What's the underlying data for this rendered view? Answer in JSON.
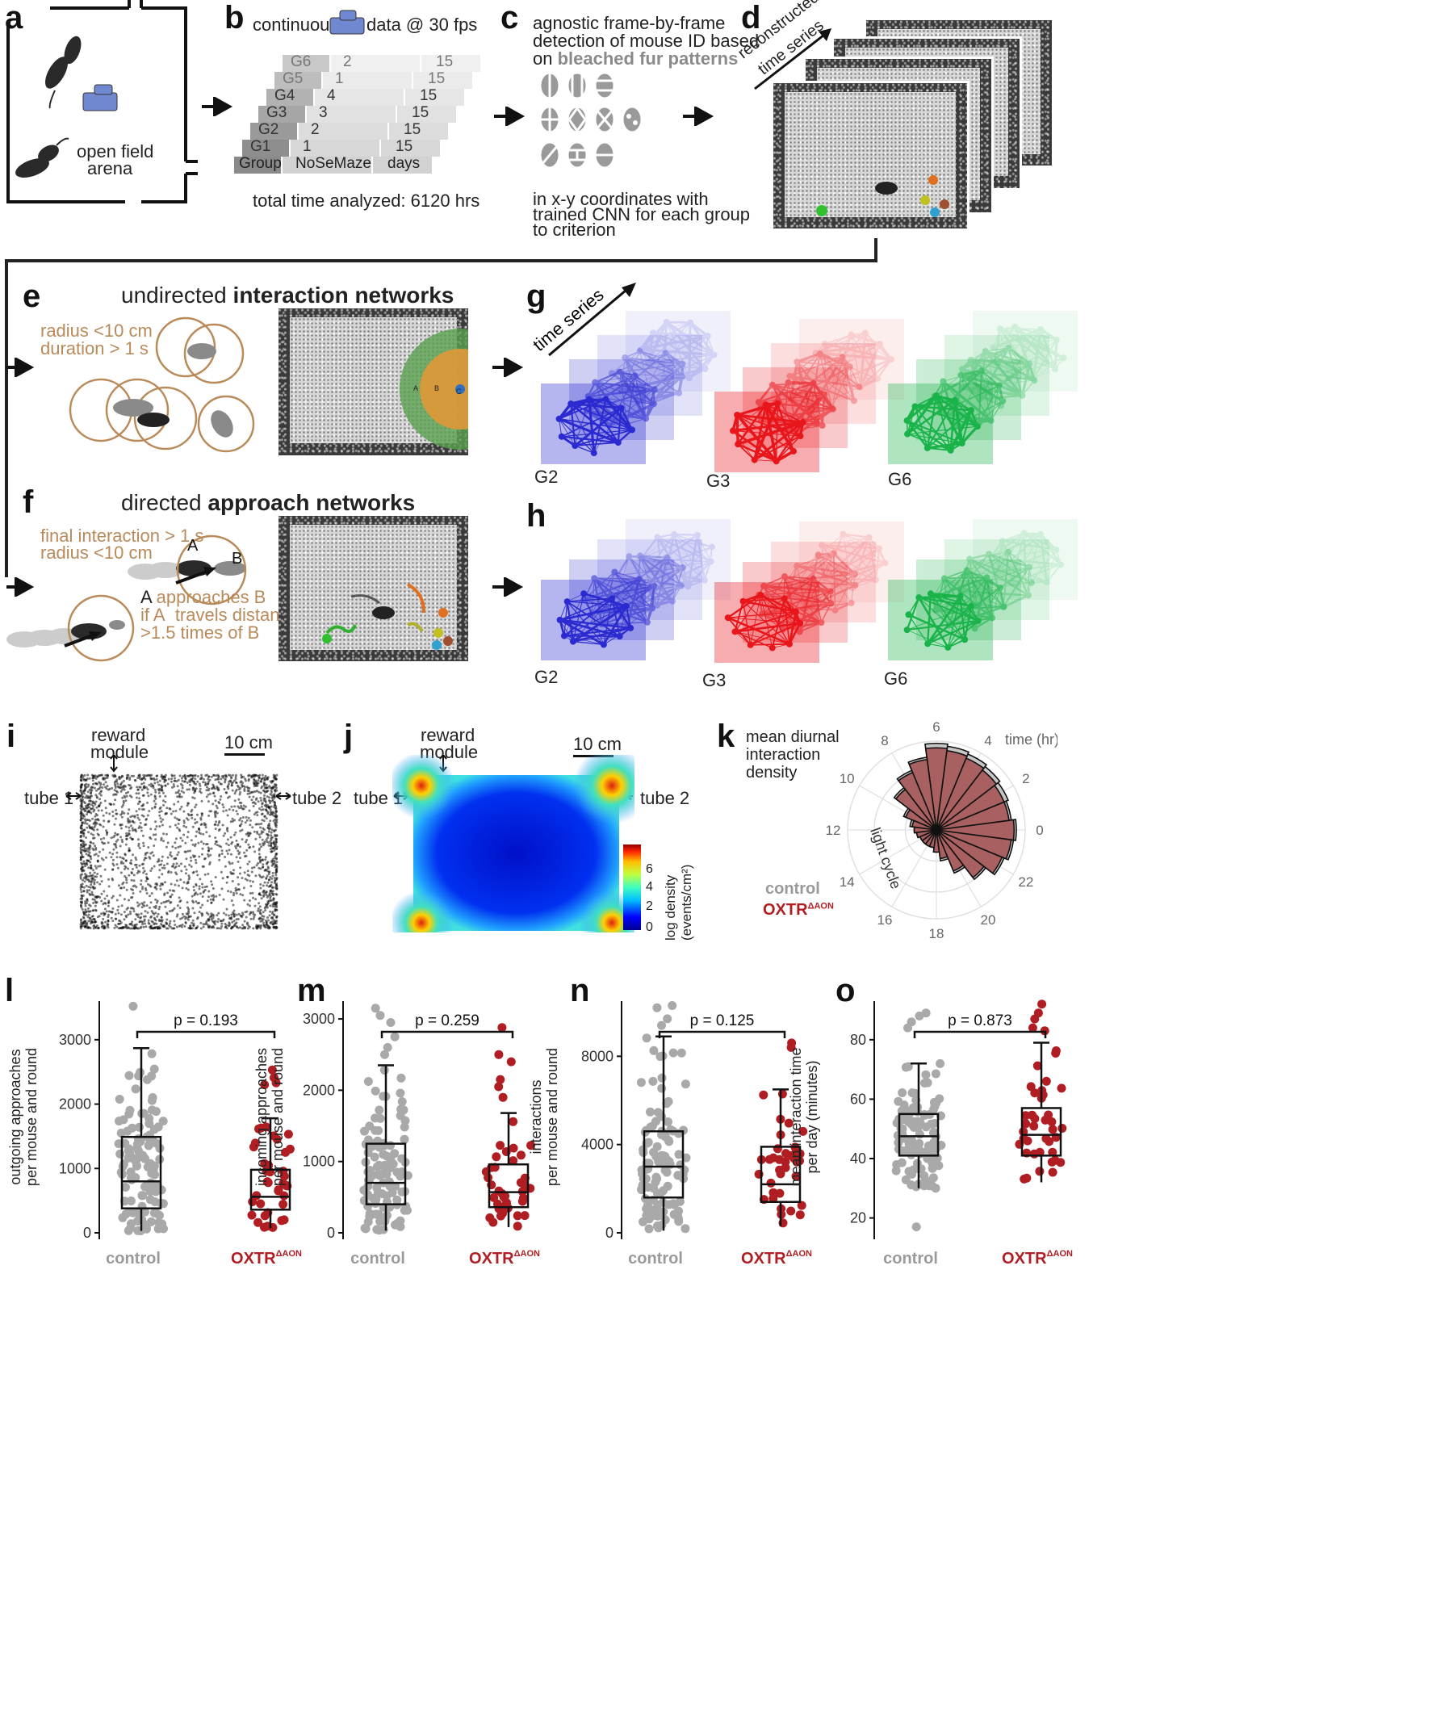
{
  "panels": {
    "a": {
      "label": "a",
      "arena_text_1": "open field",
      "arena_text_2": "arena"
    },
    "b": {
      "label": "b",
      "top_left": "continuous",
      "top_right": "data @ 30 fps",
      "rows": [
        {
          "group": "G6",
          "nosemaze": "2",
          "days": "15"
        },
        {
          "group": "G5",
          "nosemaze": "1",
          "days": "15"
        },
        {
          "group": "G4",
          "nosemaze": "4",
          "days": "15"
        },
        {
          "group": "G3",
          "nosemaze": "3",
          "days": "15"
        },
        {
          "group": "G2",
          "nosemaze": "2",
          "days": "15"
        },
        {
          "group": "G1",
          "nosemaze": "1",
          "days": "15"
        }
      ],
      "header": {
        "group": "Group",
        "nosemaze": "NoSeMaze",
        "days": "days"
      },
      "total": "total time analyzed: 6120 hrs"
    },
    "c": {
      "label": "c",
      "line1": "agnostic frame-by-frame",
      "line2": "detection of mouse ID based",
      "line3_pre": "on ",
      "line3_bold": "bleached fur patterns",
      "bottom1": "in x-y coordinates with",
      "bottom2": "trained CNN for each group",
      "bottom3": "to criterion"
    },
    "d": {
      "label": "d",
      "rot1": "reconstructed",
      "rot2": "time series"
    },
    "e": {
      "label": "e",
      "title_pre": "undirected ",
      "title_bold": "interaction networks",
      "rule1": "radius <10 cm",
      "rule2": "duration > 1 s",
      "zones": [
        "A",
        "B",
        "C"
      ]
    },
    "f": {
      "label": "f",
      "title_pre": "directed ",
      "title_bold": "approach networks",
      "rule1": "final interaction > 1 s",
      "rule2": "radius <10 cm",
      "mouse_a": "A",
      "mouse_b": "B",
      "line1_a": "A",
      "line1_b": "approaches B",
      "line2_a": "if A",
      "line2_b": "travels distance",
      "line3": ">1.5 times of B"
    },
    "g": {
      "label": "g",
      "axis": "time series",
      "groups": [
        "G2",
        "G3",
        "G6"
      ]
    },
    "h": {
      "label": "h",
      "groups": [
        "G2",
        "G3",
        "G6"
      ]
    },
    "i": {
      "label": "i",
      "reward": "reward",
      "module": "module",
      "scale": "10 cm",
      "tube1": "tube 1",
      "tube2": "tube 2"
    },
    "j": {
      "label": "j",
      "reward": "reward",
      "module": "module",
      "scale": "10 cm",
      "tube1": "tube 1",
      "tube2": "tube 2",
      "cbar_title1": "log density",
      "cbar_title2": "(events/cm²)",
      "cbar_ticks": [
        "6",
        "4",
        "2",
        "0"
      ]
    },
    "k": {
      "label": "k",
      "title1": "mean diurnal",
      "title2": "interaction",
      "title3": "density",
      "time_label": "time (hr)",
      "light_cycle": "light cycle",
      "legend_control": "control",
      "legend_oxtr": "OXTR",
      "legend_oxtr_sup": "ΔAON"
    }
  },
  "colors": {
    "control": "#a9a9a9",
    "oxtr": "#b01e23",
    "tan": "#b98a5a",
    "blue": "#2a2ad0",
    "red": "#e8151b",
    "green": "#19b34a",
    "camera": "#7088d0"
  },
  "chart_data": [
    {
      "type": "bar",
      "panel": "k",
      "polar": true,
      "categories": [
        "0",
        "1",
        "2",
        "3",
        "4",
        "5",
        "6",
        "7",
        "8",
        "9",
        "10",
        "11",
        "12",
        "13",
        "14",
        "15",
        "16",
        "17",
        "18",
        "19",
        "20",
        "21",
        "22",
        "23"
      ],
      "hour_ticks": [
        "0",
        "2",
        "4",
        "6",
        "8",
        "10",
        "12",
        "14",
        "16",
        "18",
        "20",
        "22"
      ],
      "series": [
        {
          "name": "control",
          "values": [
            3.6,
            3.4,
            3.5,
            3.6,
            3.7,
            3.8,
            3.9,
            3.3,
            2.9,
            2.4,
            1.6,
            1.2,
            1.0,
            0.9,
            0.8,
            0.8,
            0.8,
            0.8,
            1.0,
            1.4,
            2.1,
            2.8,
            3.3,
            3.5
          ]
        },
        {
          "name": "OXTRΔAON",
          "values": [
            3.5,
            3.3,
            3.3,
            3.4,
            3.5,
            3.6,
            3.7,
            3.2,
            2.8,
            2.3,
            1.5,
            1.1,
            1.0,
            0.9,
            0.8,
            0.8,
            0.8,
            0.8,
            1.0,
            1.3,
            2.0,
            2.7,
            3.2,
            3.4
          ]
        }
      ]
    },
    {
      "type": "scatter",
      "subtype": "box",
      "panel": "l",
      "ylabel": "outgoing approaches per mouse and round",
      "ylabel1": "outgoing approaches",
      "ylabel2": "per mouse and round",
      "categories": [
        "control",
        "OXTR"
      ],
      "yticks": [
        "0",
        "1000",
        "2000",
        "3000"
      ],
      "ylim": [
        0,
        3600
      ],
      "p_text": "p = 0.193",
      "boxes": [
        {
          "min": 30,
          "q1": 380,
          "median": 800,
          "q3": 1490,
          "max": 2870
        },
        {
          "min": 70,
          "q1": 360,
          "median": 560,
          "q3": 980,
          "max": 1780
        }
      ],
      "outliers": [
        [
          3520
        ],
        [
          2530,
          2410,
          2330,
          2300
        ]
      ]
    },
    {
      "type": "scatter",
      "subtype": "box",
      "panel": "m",
      "ylabel": "incoming approaches per mouse and round",
      "ylabel1": "incoming approaches",
      "ylabel2": "per mouse and round",
      "categories": [
        "control",
        "OXTR"
      ],
      "yticks": [
        "0",
        "1000",
        "2000",
        "3000"
      ],
      "ylim": [
        0,
        3250
      ],
      "p_text": "p = 0.259",
      "boxes": [
        {
          "min": 30,
          "q1": 400,
          "median": 700,
          "q3": 1250,
          "max": 2350
        },
        {
          "min": 80,
          "q1": 360,
          "median": 570,
          "q3": 960,
          "max": 1680
        }
      ],
      "outliers": [
        [
          3150,
          3050,
          2950,
          2750,
          2600,
          2500
        ],
        [
          2880,
          2500,
          2400,
          2150,
          2050,
          1900
        ]
      ]
    },
    {
      "type": "scatter",
      "subtype": "box",
      "panel": "n",
      "ylabel": "interactions per mouse and round",
      "ylabel1": "interactions",
      "ylabel2": "per mouse and round",
      "categories": [
        "control",
        "OXTR"
      ],
      "yticks": [
        "0",
        "4000",
        "8000"
      ],
      "ylim": [
        0,
        10500
      ],
      "p_text": "p = 0.125",
      "boxes": [
        {
          "min": 100,
          "q1": 1600,
          "median": 3000,
          "q3": 4600,
          "max": 8900
        },
        {
          "min": 300,
          "q1": 1400,
          "median": 2200,
          "q3": 3900,
          "max": 6500
        }
      ],
      "outliers": [
        [
          10300,
          10200,
          9700,
          9400
        ],
        [
          8600,
          8400
        ]
      ]
    },
    {
      "type": "scatter",
      "subtype": "box",
      "panel": "o",
      "ylabel": "mean interaction time per day (minutes)",
      "ylabel1": "mean interaction time",
      "ylabel2": "per day (minutes)",
      "categories": [
        "control",
        "OXTR"
      ],
      "yticks": [
        "20",
        "40",
        "60",
        "80"
      ],
      "ylim": [
        15,
        93
      ],
      "p_text": "p = 0.873",
      "boxes": [
        {
          "min": 30,
          "q1": 41,
          "median": 47.5,
          "q3": 55,
          "max": 72
        },
        {
          "min": 32,
          "q1": 41,
          "median": 48,
          "q3": 57,
          "max": 79
        }
      ],
      "outliers": [
        [
          17,
          89,
          88,
          86,
          84
        ],
        [
          92,
          89,
          87,
          84,
          83
        ]
      ]
    }
  ],
  "box_xlabels": {
    "control": "control",
    "oxtr": "OXTR",
    "oxtr_sup": "ΔAON"
  }
}
